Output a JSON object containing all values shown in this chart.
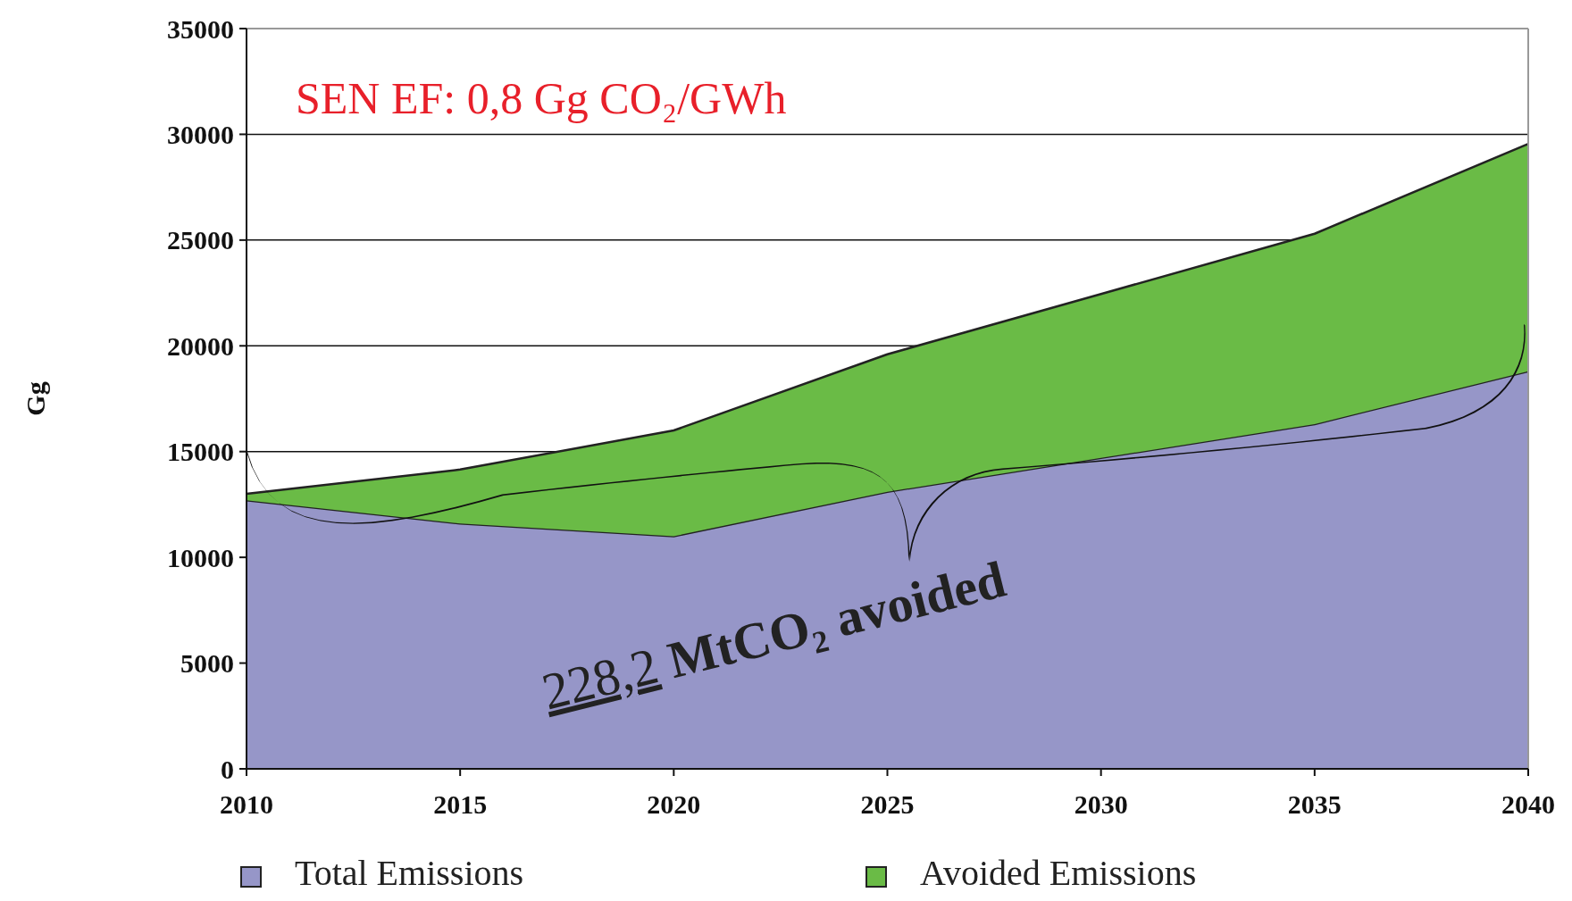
{
  "chart_data": {
    "type": "area",
    "stacked": true,
    "ylabel": "Gg",
    "x": [
      2010,
      2015,
      2020,
      2025,
      2030,
      2035,
      2040
    ],
    "series": [
      {
        "name": "Total Emissions",
        "color": "#9696c8",
        "values": [
          12700,
          11600,
          11000,
          13100,
          14700,
          16300,
          18800
        ]
      },
      {
        "name": "Avoided Emissions",
        "color": "#6abb46",
        "values": [
          300,
          2550,
          5000,
          6500,
          7750,
          9000,
          10750
        ]
      }
    ],
    "xlim": [
      2010,
      2040
    ],
    "xticks": [
      2010,
      2015,
      2020,
      2025,
      2030,
      2035,
      2040
    ],
    "ylim": [
      0,
      35000
    ],
    "yticks": [
      0,
      5000,
      10000,
      15000,
      20000,
      25000,
      30000,
      35000
    ],
    "grid": "y",
    "legend": "bottom",
    "annotations": [
      "SEN EF: 0,8 Gg CO₂/GWh",
      "228,2 MtCO₂ avoided"
    ]
  }
}
